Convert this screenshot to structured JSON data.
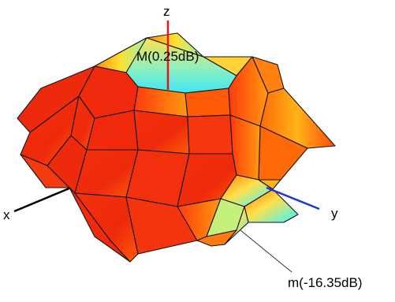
{
  "view": {
    "axes": [
      {
        "name": "x",
        "color": "#000000"
      },
      {
        "name": "y",
        "color": "#1f35d6"
      },
      {
        "name": "z",
        "color": "#e01818"
      }
    ],
    "annotations": {
      "max_label": "M(0.25dB)",
      "min_label": "m(-16.35dB)"
    },
    "colors": {
      "surface_hot": "#f2240e",
      "surface_mid": "#ff7a08",
      "surface_warm": "#ffd21a",
      "surface_cool": "#c8f078",
      "surface_cold": "#4ee8f2",
      "mesh": "#141414"
    }
  }
}
